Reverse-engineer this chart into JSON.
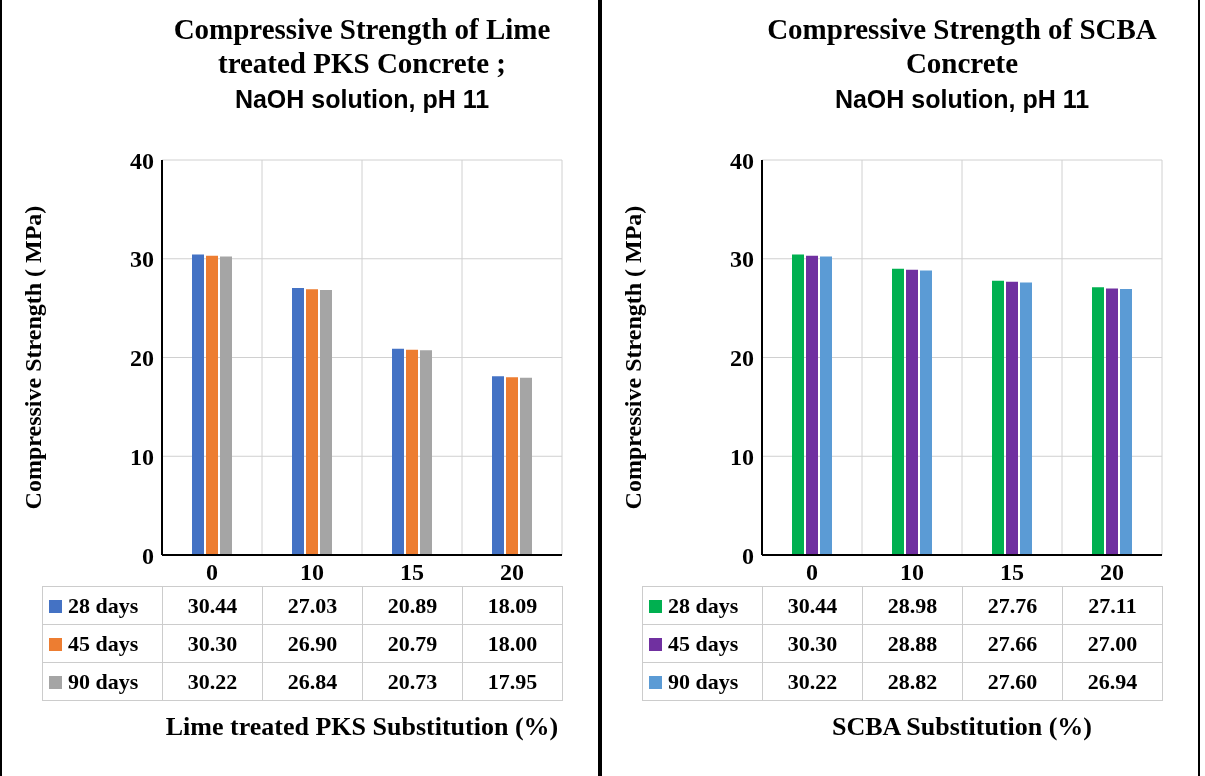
{
  "chart_data": [
    {
      "type": "bar",
      "title": "Compressive Strength of Lime treated PKS Concrete ;",
      "subtitle": "NaOH solution, pH 11",
      "xlabel": "Lime treated PKS Substitution (%)",
      "ylabel": "Compressive Strength ( MPa)",
      "categories": [
        "0",
        "10",
        "15",
        "20"
      ],
      "series": [
        {
          "name": "28 days",
          "color": "#4472c4",
          "values": [
            30.44,
            27.03,
            20.89,
            18.09
          ],
          "value_labels": [
            "30.44",
            "27.03",
            "20.89",
            "18.09"
          ]
        },
        {
          "name": "45 days",
          "color": "#ed7d31",
          "values": [
            30.3,
            26.9,
            20.79,
            18.0
          ],
          "value_labels": [
            "30.30",
            "26.90",
            "20.79",
            "18.00"
          ]
        },
        {
          "name": "90 days",
          "color": "#a5a5a5",
          "values": [
            30.22,
            26.84,
            20.73,
            17.95
          ],
          "value_labels": [
            "30.22",
            "26.84",
            "20.73",
            "17.95"
          ]
        }
      ],
      "ylim": [
        0,
        40
      ],
      "yticks": [
        0,
        10,
        20,
        30,
        40
      ],
      "grid": true,
      "legend": "bottom"
    },
    {
      "type": "bar",
      "title": "Compressive Strength of SCBA Concrete",
      "subtitle": "NaOH solution, pH 11",
      "xlabel": "SCBA Substitution (%)",
      "ylabel": "Compressive Strength ( MPa)",
      "categories": [
        "0",
        "10",
        "15",
        "20"
      ],
      "series": [
        {
          "name": "28 days",
          "color": "#00b050",
          "values": [
            30.44,
            28.98,
            27.76,
            27.11
          ],
          "value_labels": [
            "30.44",
            "28.98",
            "27.76",
            "27.11"
          ]
        },
        {
          "name": "45 days",
          "color": "#7030a0",
          "values": [
            30.3,
            28.88,
            27.66,
            27.0
          ],
          "value_labels": [
            "30.30",
            "28.88",
            "27.66",
            "27.00"
          ]
        },
        {
          "name": "90 days",
          "color": "#5b9bd5",
          "values": [
            30.22,
            28.82,
            27.6,
            26.94
          ],
          "value_labels": [
            "30.22",
            "28.82",
            "27.60",
            "26.94"
          ]
        }
      ],
      "ylim": [
        0,
        40
      ],
      "yticks": [
        0,
        10,
        20,
        30,
        40
      ],
      "grid": true,
      "legend": "bottom"
    }
  ]
}
